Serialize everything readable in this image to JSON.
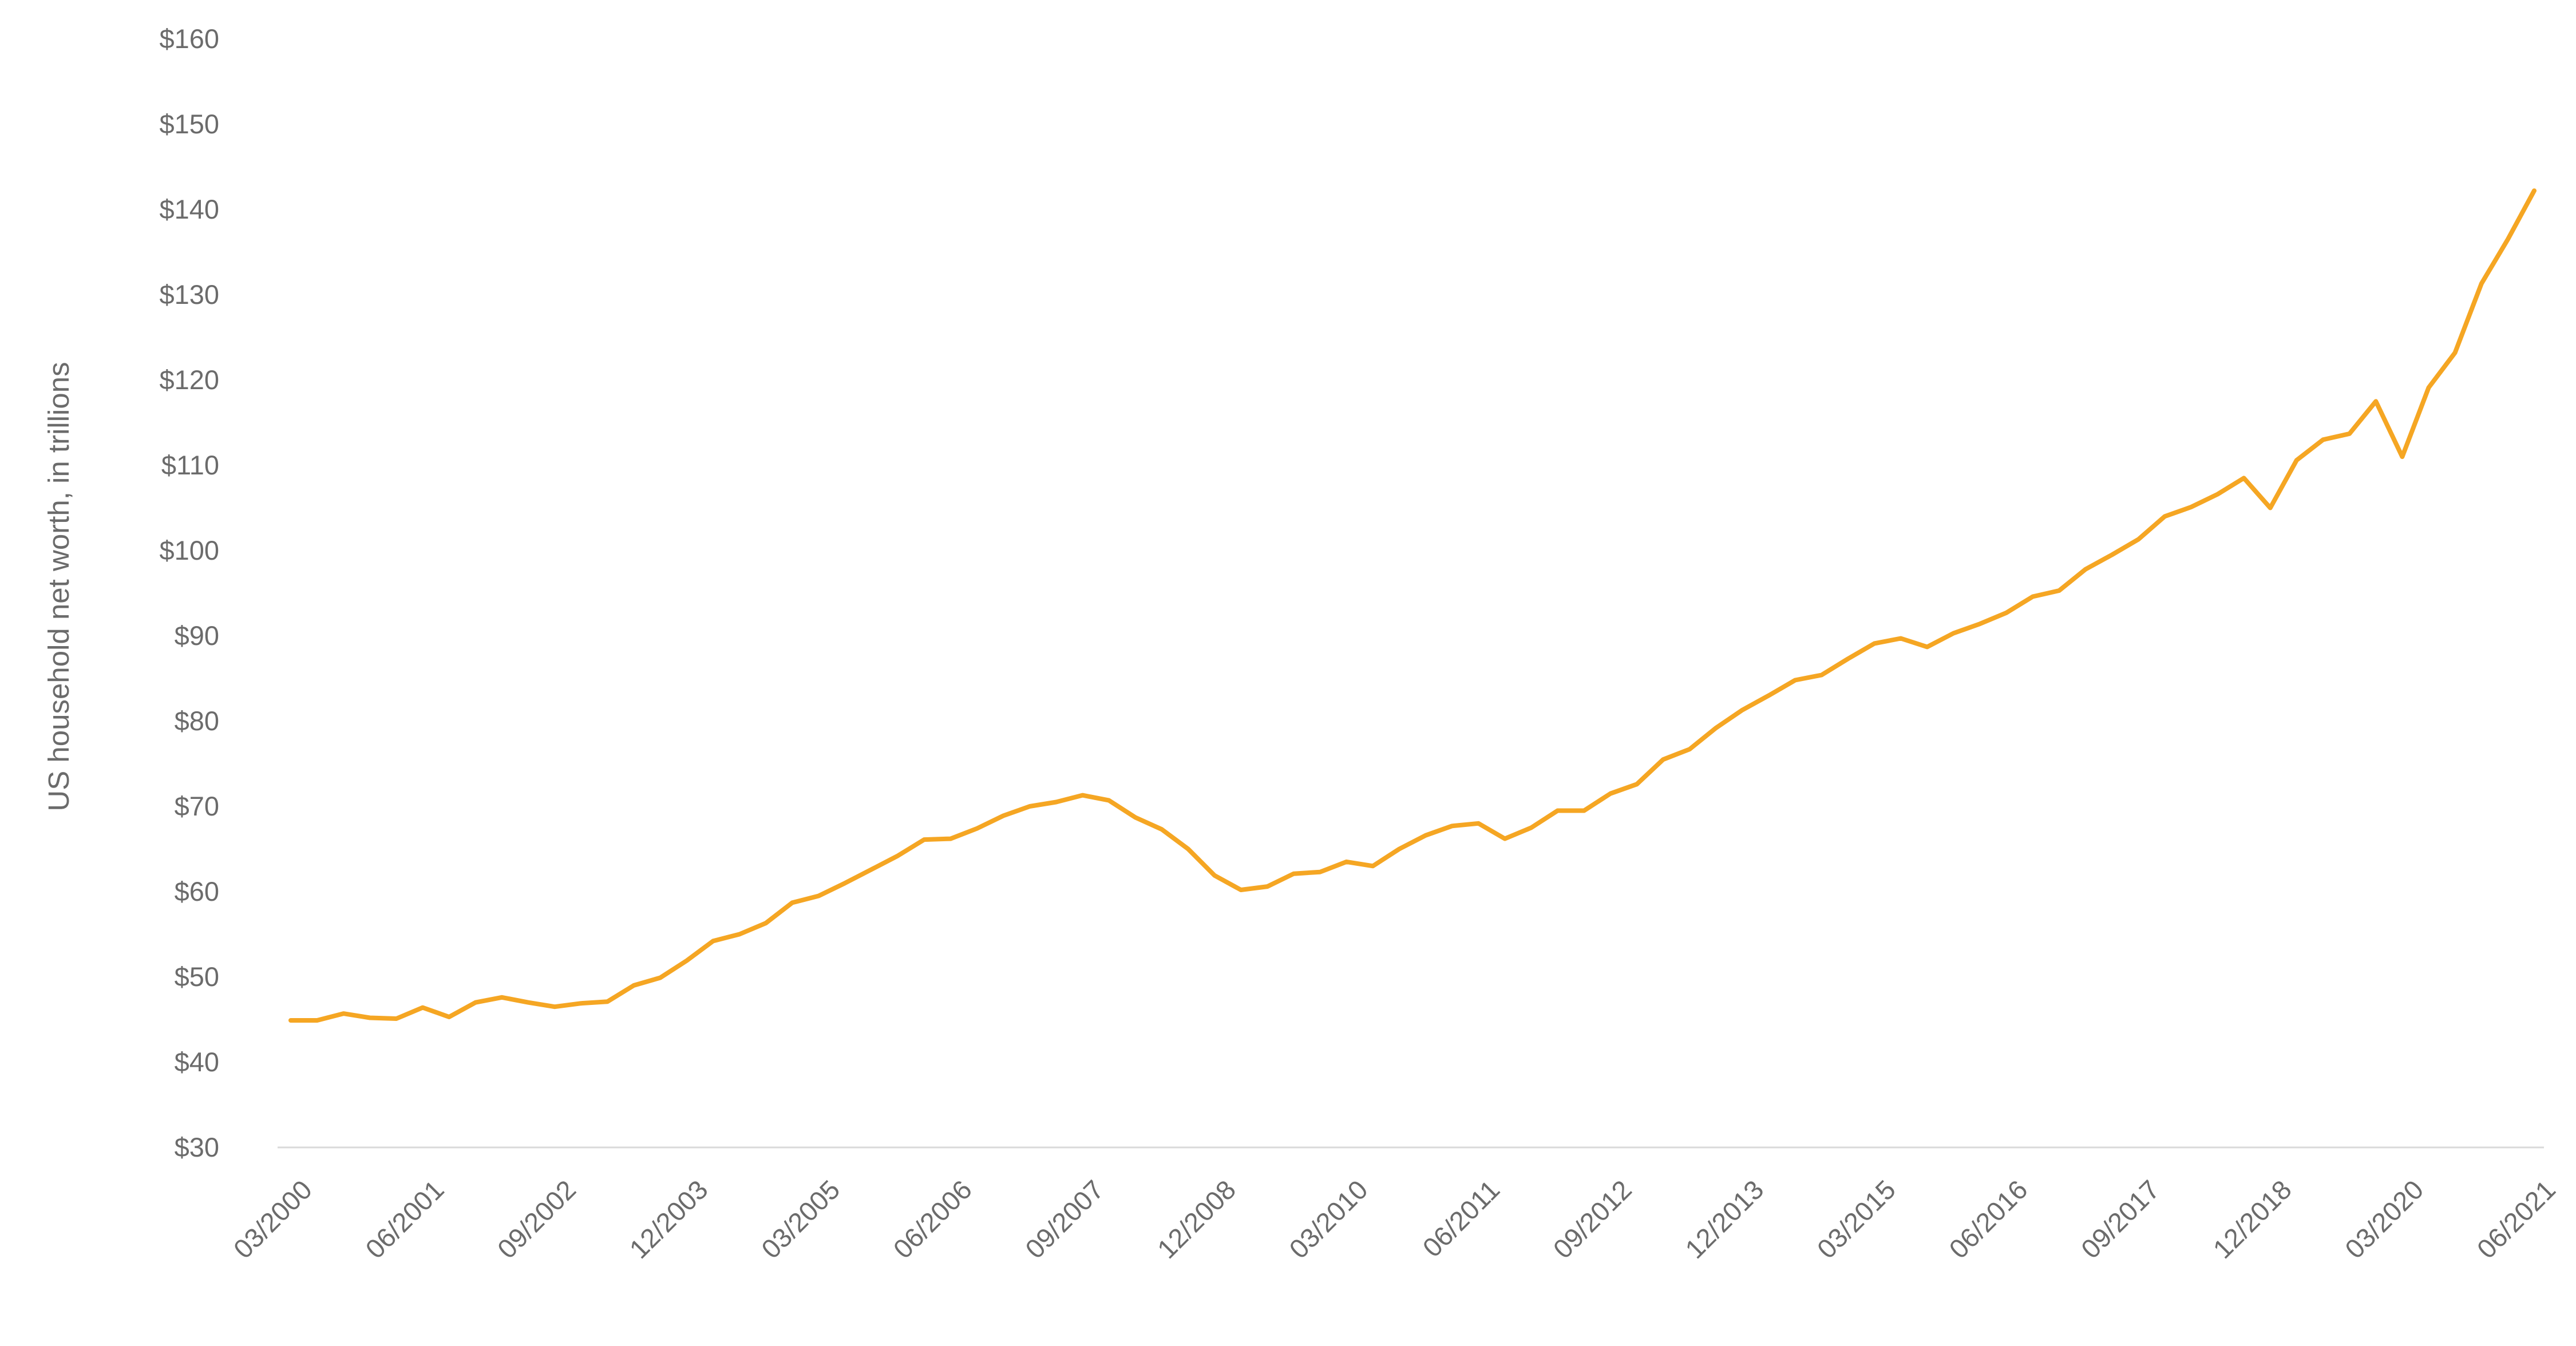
{
  "chart_data": {
    "type": "line",
    "ylabel": "US household net worth, in trillions",
    "ylim": [
      30,
      160
    ],
    "ytick_values": [
      30,
      40,
      50,
      60,
      70,
      80,
      90,
      100,
      110,
      120,
      130,
      140,
      150,
      160
    ],
    "ytick_labels": [
      "$30",
      "$40",
      "$50",
      "$60",
      "$70",
      "$80",
      "$90",
      "$100",
      "$110",
      "$120",
      "$130",
      "$140",
      "$150",
      "$160"
    ],
    "xtick_labels": [
      "03/2000",
      "06/2001",
      "09/2002",
      "12/2003",
      "03/2005",
      "06/2006",
      "09/2007",
      "12/2008",
      "03/2010",
      "06/2011",
      "09/2012",
      "12/2013",
      "03/2015",
      "06/2016",
      "09/2017",
      "12/2018",
      "03/2020",
      "06/2021"
    ],
    "xtick_positions": [
      0,
      5,
      10,
      15,
      20,
      25,
      30,
      35,
      40,
      45,
      50,
      55,
      60,
      65,
      70,
      75,
      80,
      85
    ],
    "grid": false,
    "series": [
      {
        "color": "#f5a623",
        "values": [
          44.9,
          44.9,
          45.7,
          45.2,
          45.1,
          46.4,
          45.3,
          47.0,
          47.6,
          47.0,
          46.5,
          46.9,
          47.1,
          49.0,
          49.9,
          51.9,
          54.2,
          55.0,
          56.3,
          58.7,
          59.5,
          61.0,
          62.6,
          64.2,
          66.1,
          66.2,
          67.4,
          68.9,
          70.0,
          70.5,
          71.3,
          70.7,
          68.7,
          67.3,
          65.0,
          61.9,
          60.2,
          60.6,
          62.1,
          62.3,
          63.5,
          63.0,
          65.0,
          66.6,
          67.7,
          68.0,
          66.2,
          67.5,
          69.5,
          69.5,
          71.5,
          72.6,
          75.5,
          76.7,
          79.2,
          81.3,
          83.0,
          84.8,
          85.4,
          87.3,
          89.1,
          89.7,
          88.7,
          90.3,
          91.4,
          92.7,
          94.6,
          95.3,
          97.8,
          99.5,
          101.3,
          104.0,
          105.1,
          106.6,
          108.5,
          105.0,
          110.6,
          113.0,
          113.7,
          117.5,
          111.0,
          119.1,
          123.2,
          131.3,
          136.5,
          142.2
        ]
      }
    ]
  }
}
